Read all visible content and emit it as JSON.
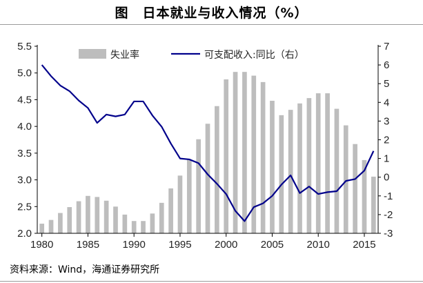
{
  "chart_data": {
    "type": "bar+line",
    "title": "图　日本就业与收入情况（%）",
    "source": "资料来源：Wind，海通证券研究所",
    "x": [
      1980,
      1981,
      1982,
      1983,
      1984,
      1985,
      1986,
      1987,
      1988,
      1989,
      1990,
      1991,
      1992,
      1993,
      1994,
      1995,
      1996,
      1997,
      1998,
      1999,
      2000,
      2001,
      2002,
      2003,
      2004,
      2005,
      2006,
      2007,
      2008,
      2009,
      2010,
      2011,
      2012,
      2013,
      2014,
      2015,
      2016
    ],
    "x_ticks": [
      1980,
      1985,
      1990,
      1995,
      2000,
      2005,
      2010,
      2015
    ],
    "xlim": [
      1979.5,
      2016.5
    ],
    "left_axis": {
      "ylim": [
        2.0,
        5.5
      ],
      "ticks": [
        "2.0",
        "2.5",
        "3.0",
        "3.5",
        "4.0",
        "4.5",
        "5.0",
        "5.5"
      ]
    },
    "right_axis": {
      "ylim": [
        -3,
        7
      ],
      "ticks": [
        "-3",
        "-2",
        "-1",
        "0",
        "1",
        "2",
        "3",
        "4",
        "5",
        "6",
        "7"
      ]
    },
    "legend_position": "top",
    "series": [
      {
        "name": "失业率",
        "type": "bar",
        "axis": "left",
        "color": "#bdbdbd",
        "values": [
          2.18,
          2.25,
          2.38,
          2.49,
          2.6,
          2.7,
          2.68,
          2.61,
          2.5,
          2.35,
          2.23,
          2.23,
          2.37,
          2.57,
          2.84,
          3.08,
          3.38,
          3.76,
          4.05,
          4.38,
          4.88,
          5.02,
          5.02,
          4.95,
          4.83,
          4.48,
          4.21,
          4.31,
          4.43,
          4.53,
          4.62,
          4.62,
          4.33,
          4.02,
          3.67,
          3.37,
          3.06
        ]
      },
      {
        "name": "可支配收入:同比（右）",
        "type": "line",
        "axis": "right",
        "color": "#00008b",
        "values": [
          6.0,
          5.4,
          4.9,
          4.6,
          4.1,
          3.7,
          2.9,
          3.35,
          3.25,
          3.35,
          4.05,
          4.05,
          3.3,
          2.7,
          1.8,
          1.0,
          0.95,
          0.75,
          0.15,
          -0.35,
          -0.9,
          -1.8,
          -2.35,
          -1.6,
          -1.4,
          -1.0,
          -0.4,
          0.1,
          -0.85,
          -0.5,
          -0.9,
          -0.8,
          -0.75,
          -0.2,
          -0.1,
          0.35,
          1.4
        ]
      }
    ]
  }
}
